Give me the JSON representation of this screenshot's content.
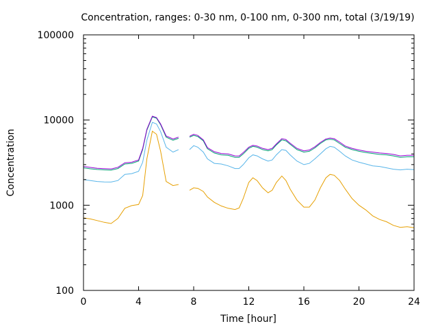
{
  "chart_data": {
    "type": "line",
    "title": "Concentration, ranges: 0-30 nm, 0-100 nm, 0-300 nm, total (3/19/19)",
    "xlabel": "Time [hour]",
    "ylabel": "Concentration",
    "xlim": [
      0,
      24
    ],
    "ylim": [
      100,
      100000
    ],
    "yscale": "log",
    "grid": false,
    "xticks": [
      0,
      4,
      8,
      12,
      16,
      20,
      24
    ],
    "yticks": [
      100,
      1000,
      10000,
      100000
    ],
    "xtick_labels": [
      "0",
      "4",
      "8",
      "12",
      "16",
      "20",
      "24"
    ],
    "ytick_labels": [
      "100",
      "1000",
      "10000",
      "100000"
    ],
    "series": [
      {
        "color": "#e69f00",
        "segments": [
          [
            [
              0,
              710
            ],
            [
              0.5,
              690
            ],
            [
              1,
              660
            ],
            [
              1.5,
              630
            ],
            [
              2,
              610
            ],
            [
              2.5,
              700
            ],
            [
              3,
              920
            ],
            [
              3.5,
              990
            ],
            [
              4,
              1020
            ],
            [
              4.3,
              1300
            ],
            [
              4.6,
              3500
            ],
            [
              5,
              7400
            ],
            [
              5.3,
              6800
            ],
            [
              5.6,
              4300
            ],
            [
              6,
              1900
            ],
            [
              6.5,
              1700
            ],
            [
              6.9,
              1750
            ]
          ],
          [
            [
              7.7,
              1500
            ],
            [
              8,
              1600
            ],
            [
              8.3,
              1580
            ],
            [
              8.7,
              1450
            ],
            [
              9,
              1250
            ],
            [
              9.5,
              1080
            ],
            [
              10,
              980
            ],
            [
              10.5,
              920
            ],
            [
              11,
              890
            ],
            [
              11.3,
              930
            ],
            [
              11.6,
              1200
            ],
            [
              12,
              1850
            ],
            [
              12.3,
              2100
            ],
            [
              12.6,
              1950
            ],
            [
              13,
              1600
            ],
            [
              13.4,
              1400
            ],
            [
              13.7,
              1500
            ],
            [
              14,
              1850
            ],
            [
              14.4,
              2200
            ],
            [
              14.7,
              1950
            ],
            [
              15,
              1550
            ],
            [
              15.5,
              1150
            ],
            [
              16,
              950
            ],
            [
              16.4,
              950
            ],
            [
              16.8,
              1150
            ],
            [
              17.2,
              1600
            ],
            [
              17.6,
              2100
            ],
            [
              17.9,
              2300
            ],
            [
              18.2,
              2250
            ],
            [
              18.6,
              1950
            ],
            [
              19,
              1550
            ],
            [
              19.5,
              1200
            ],
            [
              20,
              1000
            ],
            [
              20.5,
              880
            ],
            [
              21,
              750
            ],
            [
              21.5,
              680
            ],
            [
              22,
              640
            ],
            [
              22.5,
              580
            ],
            [
              23,
              550
            ],
            [
              23.5,
              560
            ],
            [
              24,
              545
            ]
          ]
        ]
      },
      {
        "color": "#56b4e9",
        "segments": [
          [
            [
              0,
              2000
            ],
            [
              0.5,
              1950
            ],
            [
              1,
              1900
            ],
            [
              1.5,
              1880
            ],
            [
              2,
              1870
            ],
            [
              2.5,
              1950
            ],
            [
              3,
              2300
            ],
            [
              3.5,
              2350
            ],
            [
              4,
              2500
            ],
            [
              4.3,
              3200
            ],
            [
              4.6,
              5800
            ],
            [
              5,
              9400
            ],
            [
              5.3,
              9000
            ],
            [
              5.6,
              7300
            ],
            [
              6,
              4800
            ],
            [
              6.5,
              4200
            ],
            [
              6.9,
              4500
            ]
          ],
          [
            [
              7.7,
              4500
            ],
            [
              8,
              5000
            ],
            [
              8.3,
              4800
            ],
            [
              8.7,
              4200
            ],
            [
              9,
              3500
            ],
            [
              9.5,
              3100
            ],
            [
              10,
              3050
            ],
            [
              10.5,
              2900
            ],
            [
              11,
              2700
            ],
            [
              11.3,
              2700
            ],
            [
              11.6,
              3000
            ],
            [
              12,
              3600
            ],
            [
              12.3,
              3900
            ],
            [
              12.6,
              3800
            ],
            [
              13,
              3500
            ],
            [
              13.4,
              3300
            ],
            [
              13.7,
              3400
            ],
            [
              14,
              3900
            ],
            [
              14.4,
              4500
            ],
            [
              14.7,
              4400
            ],
            [
              15,
              3900
            ],
            [
              15.5,
              3300
            ],
            [
              16,
              3000
            ],
            [
              16.4,
              3100
            ],
            [
              16.8,
              3500
            ],
            [
              17.2,
              4000
            ],
            [
              17.6,
              4600
            ],
            [
              17.9,
              4900
            ],
            [
              18.2,
              4800
            ],
            [
              18.6,
              4300
            ],
            [
              19,
              3800
            ],
            [
              19.5,
              3400
            ],
            [
              20,
              3200
            ],
            [
              20.5,
              3050
            ],
            [
              21,
              2900
            ],
            [
              21.5,
              2850
            ],
            [
              22,
              2750
            ],
            [
              22.5,
              2650
            ],
            [
              23,
              2600
            ],
            [
              23.5,
              2650
            ],
            [
              24,
              2620
            ]
          ]
        ]
      },
      {
        "color": "#009e73",
        "segments": [
          [
            [
              0,
              2750
            ],
            [
              0.5,
              2680
            ],
            [
              1,
              2630
            ],
            [
              1.5,
              2600
            ],
            [
              2,
              2580
            ],
            [
              2.5,
              2700
            ],
            [
              3,
              3050
            ],
            [
              3.5,
              3100
            ],
            [
              4,
              3300
            ],
            [
              4.3,
              4500
            ],
            [
              4.6,
              7600
            ],
            [
              5,
              10900
            ],
            [
              5.3,
              10500
            ],
            [
              5.6,
              8800
            ],
            [
              6,
              6300
            ],
            [
              6.5,
              5800
            ],
            [
              6.9,
              6100
            ]
          ],
          [
            [
              7.7,
              6300
            ],
            [
              8,
              6600
            ],
            [
              8.3,
              6400
            ],
            [
              8.7,
              5700
            ],
            [
              9,
              4600
            ],
            [
              9.5,
              4100
            ],
            [
              10,
              3900
            ],
            [
              10.5,
              3850
            ],
            [
              11,
              3650
            ],
            [
              11.3,
              3650
            ],
            [
              11.6,
              4000
            ],
            [
              12,
              4650
            ],
            [
              12.3,
              4900
            ],
            [
              12.6,
              4800
            ],
            [
              13,
              4500
            ],
            [
              13.4,
              4350
            ],
            [
              13.7,
              4500
            ],
            [
              14,
              5100
            ],
            [
              14.4,
              5850
            ],
            [
              14.7,
              5700
            ],
            [
              15,
              5200
            ],
            [
              15.5,
              4500
            ],
            [
              16,
              4200
            ],
            [
              16.4,
              4300
            ],
            [
              16.8,
              4700
            ],
            [
              17.2,
              5300
            ],
            [
              17.6,
              5850
            ],
            [
              17.9,
              5950
            ],
            [
              18.2,
              5850
            ],
            [
              18.6,
              5300
            ],
            [
              19,
              4800
            ],
            [
              19.5,
              4500
            ],
            [
              20,
              4300
            ],
            [
              20.5,
              4150
            ],
            [
              21,
              4050
            ],
            [
              21.5,
              3950
            ],
            [
              22,
              3900
            ],
            [
              22.5,
              3800
            ],
            [
              23,
              3650
            ],
            [
              23.5,
              3700
            ],
            [
              24,
              3700
            ]
          ]
        ]
      },
      {
        "color": "#9400d3",
        "segments": [
          [
            [
              0,
              2850
            ],
            [
              0.5,
              2780
            ],
            [
              1,
              2720
            ],
            [
              1.5,
              2690
            ],
            [
              2,
              2670
            ],
            [
              2.5,
              2790
            ],
            [
              3,
              3150
            ],
            [
              3.5,
              3200
            ],
            [
              4,
              3400
            ],
            [
              4.3,
              4650
            ],
            [
              4.6,
              7800
            ],
            [
              5,
              11100
            ],
            [
              5.3,
              10700
            ],
            [
              5.6,
              9000
            ],
            [
              6,
              6500
            ],
            [
              6.5,
              6000
            ],
            [
              6.9,
              6300
            ]
          ],
          [
            [
              7.7,
              6450
            ],
            [
              8,
              6800
            ],
            [
              8.3,
              6600
            ],
            [
              8.7,
              5850
            ],
            [
              9,
              4750
            ],
            [
              9.5,
              4250
            ],
            [
              10,
              4050
            ],
            [
              10.5,
              4000
            ],
            [
              11,
              3800
            ],
            [
              11.3,
              3780
            ],
            [
              11.6,
              4150
            ],
            [
              12,
              4800
            ],
            [
              12.3,
              5050
            ],
            [
              12.6,
              4950
            ],
            [
              13,
              4650
            ],
            [
              13.4,
              4500
            ],
            [
              13.7,
              4650
            ],
            [
              14,
              5250
            ],
            [
              14.4,
              6050
            ],
            [
              14.7,
              5900
            ],
            [
              15,
              5350
            ],
            [
              15.5,
              4650
            ],
            [
              16,
              4350
            ],
            [
              16.4,
              4450
            ],
            [
              16.8,
              4850
            ],
            [
              17.2,
              5450
            ],
            [
              17.6,
              6000
            ],
            [
              17.9,
              6150
            ],
            [
              18.2,
              6050
            ],
            [
              18.6,
              5500
            ],
            [
              19,
              4950
            ],
            [
              19.5,
              4650
            ],
            [
              20,
              4450
            ],
            [
              20.5,
              4300
            ],
            [
              21,
              4200
            ],
            [
              21.5,
              4100
            ],
            [
              22,
              4050
            ],
            [
              22.5,
              3950
            ],
            [
              23,
              3800
            ],
            [
              23.5,
              3850
            ],
            [
              24,
              3850
            ]
          ]
        ]
      }
    ]
  }
}
